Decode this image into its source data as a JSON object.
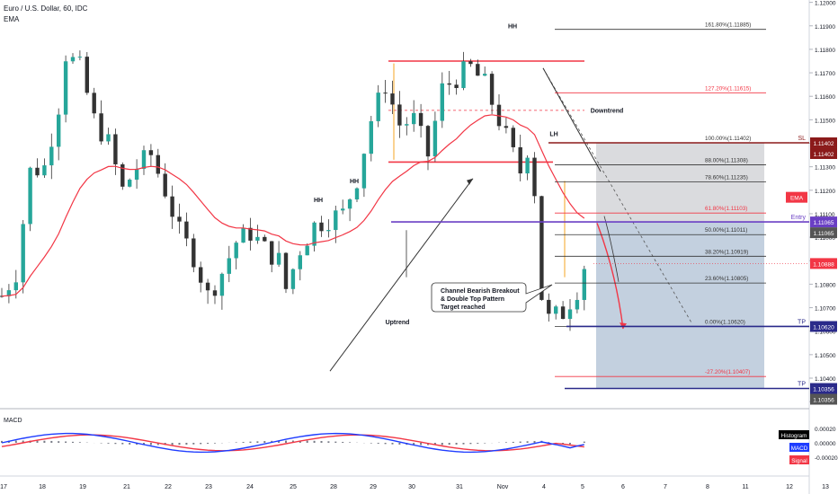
{
  "header": {
    "symbol_line": "Euro / U.S. Dollar, 60, IDC",
    "indicator_label": "EMA"
  },
  "chart_data": {
    "type": "candlestick",
    "x_ticks": [
      "17",
      "18",
      "19",
      "21",
      "22",
      "23",
      "24",
      "25",
      "28",
      "29",
      "30",
      "31",
      "Nov",
      "4",
      "5",
      "6",
      "7",
      "8",
      "11",
      "12",
      "13"
    ],
    "y_ticks": [
      "1.12000",
      "1.11900",
      "1.11800",
      "1.11700",
      "1.11600",
      "1.11500",
      "1.11400",
      "1.11300",
      "1.11200",
      "1.11100",
      "1.11000",
      "1.10900",
      "1.10800",
      "1.10700",
      "1.10600",
      "1.10500",
      "1.10400",
      "1.10300"
    ],
    "ylim": [
      1.1027,
      1.1201
    ],
    "price_path": [
      [
        0,
        1.1075
      ],
      [
        2,
        1.1085
      ],
      [
        4,
        1.1128
      ],
      [
        6,
        1.113
      ],
      [
        8,
        1.1156
      ],
      [
        9,
        1.1178
      ],
      [
        11,
        1.1172
      ],
      [
        13,
        1.115
      ],
      [
        15,
        1.114
      ],
      [
        17,
        1.112
      ],
      [
        19,
        1.113
      ],
      [
        21,
        1.1135
      ],
      [
        23,
        1.112
      ],
      [
        25,
        1.1102
      ],
      [
        27,
        1.1092
      ],
      [
        29,
        1.1075
      ],
      [
        31,
        1.1085
      ],
      [
        33,
        1.1098
      ],
      [
        35,
        1.1102
      ],
      [
        37,
        1.1095
      ],
      [
        39,
        1.109
      ],
      [
        40,
        1.1078
      ],
      [
        42,
        1.1095
      ],
      [
        44,
        1.1105
      ],
      [
        46,
        1.1108
      ],
      [
        48,
        1.111
      ],
      [
        50,
        1.1125
      ],
      [
        52,
        1.115
      ],
      [
        54,
        1.1165
      ],
      [
        56,
        1.1148
      ],
      [
        58,
        1.115
      ],
      [
        60,
        1.1135
      ],
      [
        62,
        1.1163
      ],
      [
        64,
        1.1168
      ],
      [
        66,
        1.1172
      ],
      [
        68,
        1.1165
      ],
      [
        70,
        1.115
      ],
      [
        72,
        1.1135
      ],
      [
        73,
        1.1128
      ],
      [
        74,
        1.1138
      ],
      [
        75,
        1.112
      ],
      [
        76,
        1.1075
      ],
      [
        77,
        1.1065
      ],
      [
        79,
        1.1068
      ],
      [
        81,
        1.1078
      ],
      [
        82,
        1.1088
      ]
    ],
    "ema_label": "EMA",
    "current_price": "1.10888",
    "fib_levels": [
      {
        "label": "161.80%(1.11885)",
        "price": 1.11885,
        "color": "#333333"
      },
      {
        "label": "127.20%(1.11615)",
        "price": 1.11615,
        "color": "#f23645"
      },
      {
        "label": "100.00%(1.11402)",
        "price": 1.11402,
        "color": "#333333"
      },
      {
        "label": "88.00%(1.11308)",
        "price": 1.11308,
        "color": "#333333"
      },
      {
        "label": "78.60%(1.11235)",
        "price": 1.11235,
        "color": "#333333"
      },
      {
        "label": "61.80%(1.11103)",
        "price": 1.11103,
        "color": "#f23645"
      },
      {
        "label": "50.00%(1.11011)",
        "price": 1.11011,
        "color": "#333333"
      },
      {
        "label": "38.20%(1.10919)",
        "price": 1.10919,
        "color": "#333333"
      },
      {
        "label": "23.60%(1.10805)",
        "price": 1.10805,
        "color": "#333333"
      },
      {
        "label": "0.00%(1.10620)",
        "price": 1.1062,
        "color": "#333333"
      },
      {
        "label": "-27.20%(1.10407)",
        "price": 1.10407,
        "color": "#f23645"
      }
    ],
    "key_levels": [
      {
        "name": "SL",
        "price": 1.11402,
        "price_label": "1.11402",
        "color": "#8b1a1a"
      },
      {
        "name": "Entry",
        "price": 1.11065,
        "price_label": "1.11065",
        "color": "#6a3fc4"
      },
      {
        "name": "TP",
        "price": 1.1062,
        "price_label": "1.10620",
        "color": "#2a2a8a"
      },
      {
        "name": "TP",
        "price": 1.10356,
        "price_label": "1.10356",
        "color": "#2a2a8a"
      }
    ],
    "axis_tags": [
      {
        "text": "1.11402",
        "price": 1.11402,
        "bg": "#8b1a1a"
      },
      {
        "text": "1.11065",
        "price": 1.11065,
        "bg": "#555555"
      },
      {
        "text": "1.10356",
        "price": 1.10356,
        "bg": "#555555"
      }
    ],
    "indicator_badge": {
      "text": "EMA",
      "price": 1.1117,
      "bg": "#f23645"
    },
    "annotations": [
      {
        "text": "HH",
        "x": 45,
        "price": 1.1115
      },
      {
        "text": "HH",
        "x": 35,
        "price": 1.1123
      },
      {
        "text": "HH",
        "x": 66,
        "price": 1.1189
      },
      {
        "text": "LH",
        "x": 74,
        "price": 1.1143
      },
      {
        "text": "Downtrend",
        "x": 80,
        "price": 1.1153
      },
      {
        "text": "Uptrend",
        "x": 52,
        "price": 1.1063
      }
    ],
    "callout": [
      "Channel Bearish Breakout",
      "& Double Top Pattern",
      "Target reached"
    ],
    "macd": {
      "title": "MACD",
      "y_ticks": [
        "0.00020",
        "0.00000",
        "-0.00020"
      ],
      "legend": [
        {
          "text": "Histogram",
          "bg": "#000000"
        },
        {
          "text": "MACD",
          "bg": "#1e3cff"
        },
        {
          "text": "Signal",
          "bg": "#f23645"
        }
      ]
    }
  }
}
